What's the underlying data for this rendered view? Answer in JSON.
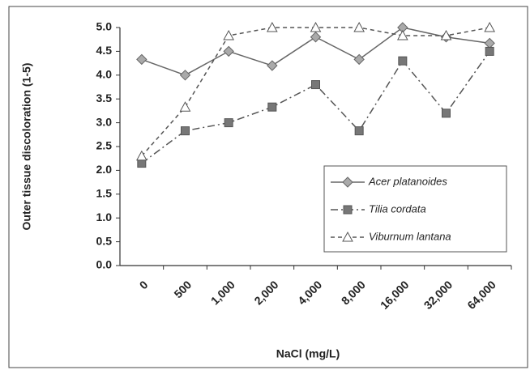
{
  "chart_data": {
    "type": "line",
    "x_label": "NaCl (mg/L)",
    "y_label": "Outer tissue discoloration (1-5)",
    "categories": [
      "0",
      "500",
      "1,000",
      "2,000",
      "4,000",
      "8,000",
      "16,000",
      "32,000",
      "64,000"
    ],
    "series": [
      {
        "name": "Acer platanoides",
        "color": "#666666",
        "dash": "solid",
        "marker": "diamond",
        "values": [
          4.33,
          4.0,
          4.5,
          4.2,
          4.8,
          4.33,
          5.0,
          4.8,
          4.67
        ]
      },
      {
        "name": "Tilia cordata",
        "color": "#555555",
        "dash": "dashdot",
        "marker": "square",
        "values": [
          2.15,
          2.83,
          3.0,
          3.33,
          3.8,
          2.83,
          4.3,
          3.2,
          4.5
        ]
      },
      {
        "name": "Viburnum lantana",
        "color": "#555555",
        "dash": "dash",
        "marker": "triangle",
        "values": [
          2.3,
          3.33,
          4.83,
          5.0,
          5.0,
          5.0,
          4.83,
          4.83,
          5.0
        ]
      }
    ],
    "ylim": [
      0,
      5
    ],
    "yticks": [
      {
        "value": 0,
        "label": "0.0"
      },
      {
        "value": 0.5,
        "label": "0.5"
      },
      {
        "value": 1,
        "label": "1.0"
      },
      {
        "value": 1.5,
        "label": "1.5"
      },
      {
        "value": 2,
        "label": "2.0"
      },
      {
        "value": 2.5,
        "label": "2.5"
      },
      {
        "value": 3,
        "label": "3.0"
      },
      {
        "value": 3.5,
        "label": "3.5"
      },
      {
        "value": 4,
        "label": "4.0"
      },
      {
        "value": 4.5,
        "label": "4.5"
      },
      {
        "value": 5,
        "label": "5.0"
      }
    ],
    "grid": false,
    "legend": "right"
  }
}
